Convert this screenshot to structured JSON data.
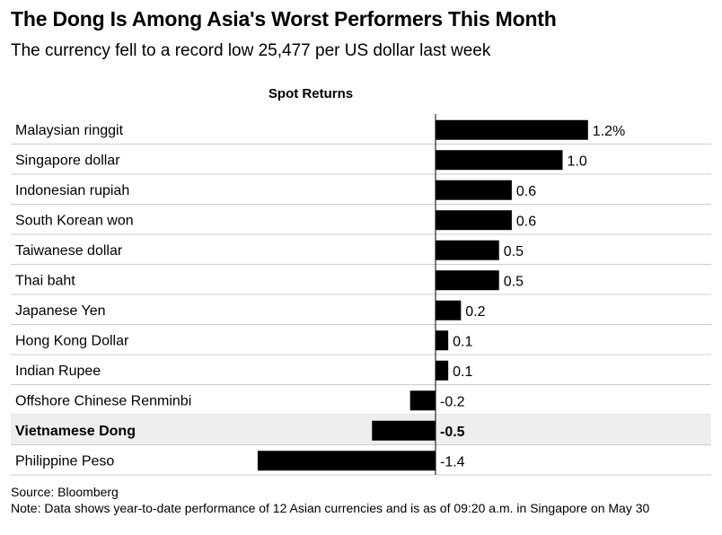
{
  "header": {
    "title": "The Dong Is Among Asia's Worst Performers This Month",
    "subtitle": "The currency fell to a record low 25,477 per US dollar last week"
  },
  "chart_data": {
    "type": "bar",
    "orientation": "horizontal",
    "column_header": "Spot Returns",
    "categories": [
      "Malaysian ringgit",
      "Singapore dollar",
      "Indonesian rupiah",
      "South Korean won",
      "Taiwanese dollar",
      "Thai baht",
      "Japanese Yen",
      "Hong Kong Dollar",
      "Indian Rupee",
      "Offshore Chinese Renminbi",
      "Vietnamese Dong",
      "Philippine Peso"
    ],
    "values": [
      1.2,
      1.0,
      0.6,
      0.6,
      0.5,
      0.5,
      0.2,
      0.1,
      0.1,
      -0.2,
      -0.5,
      -1.4
    ],
    "value_labels": [
      "1.2%",
      "1.0",
      "0.6",
      "0.6",
      "0.5",
      "0.5",
      "0.2",
      "0.1",
      "0.1",
      "-0.2",
      "-0.5",
      "-1.4"
    ],
    "highlighted_category": "Vietnamese Dong",
    "colors": {
      "bar": "#000000",
      "highlight_row": "#eeeeee",
      "row_divider": "#cccccc",
      "axis": "#000000"
    }
  },
  "footer": {
    "source": "Source: Bloomberg",
    "note": "Note: Data shows year-to-date performance of 12 Asian currencies and is as of 09:20 a.m. in Singapore on May 30"
  }
}
